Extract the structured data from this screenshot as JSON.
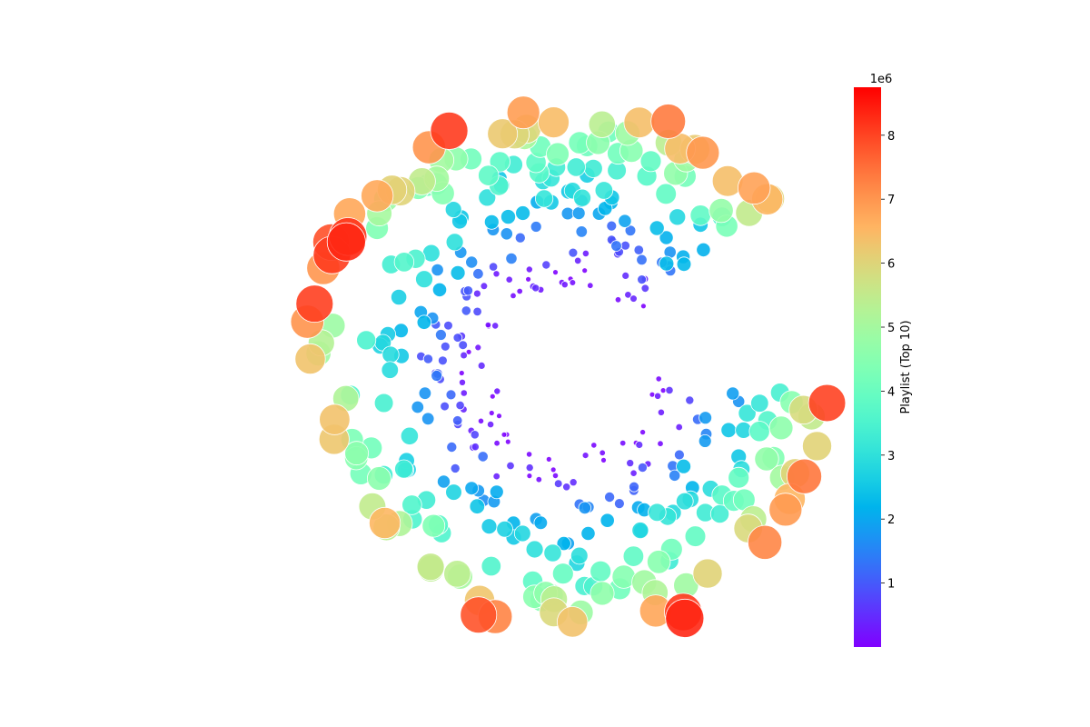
{
  "chart_data": {
    "type": "scatter",
    "description_free": true,
    "layout": "polar-spiral",
    "colorbar": {
      "label": "Playlist (Top 10)",
      "scale_label": "1e6",
      "min": 0.0,
      "max": 8.75,
      "ticks": [
        1,
        2,
        3,
        4,
        5,
        6,
        7,
        8
      ],
      "colormap": "rainbow"
    },
    "spiral": {
      "n_points": 420,
      "value_max_millions": 8.75,
      "gap_start_deg": 2,
      "gap_end_deg": 34,
      "groups": [
        {
          "value": 0.15,
          "count": 60
        },
        {
          "value": 0.6,
          "count": 40
        },
        {
          "value": 1.2,
          "count": 45
        },
        {
          "value": 2.0,
          "count": 55
        },
        {
          "value": 2.8,
          "count": 55
        },
        {
          "value": 3.6,
          "count": 45
        },
        {
          "value": 4.4,
          "count": 40
        },
        {
          "value": 5.2,
          "count": 30
        },
        {
          "value": 6.2,
          "count": 25
        },
        {
          "value": 7.1,
          "count": 15
        },
        {
          "value": 8.1,
          "count": 10
        }
      ]
    }
  }
}
